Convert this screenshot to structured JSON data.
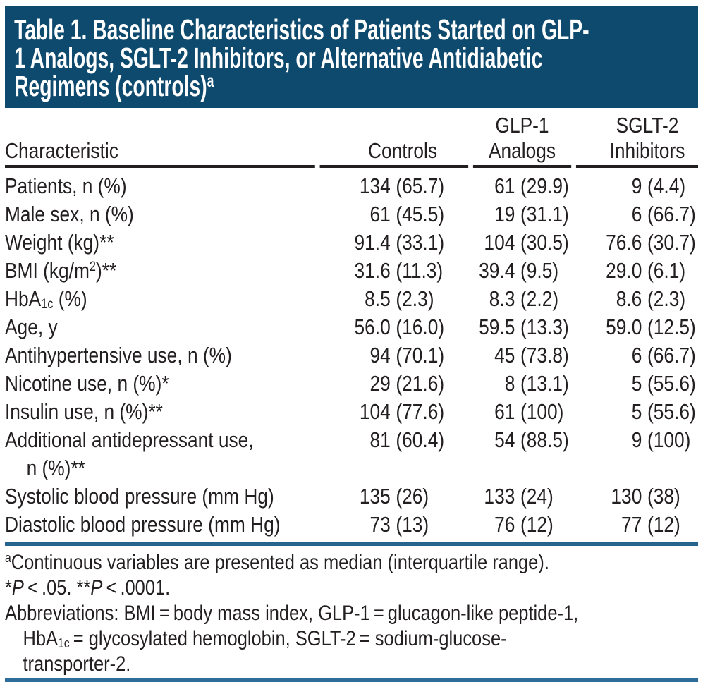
{
  "banner": {
    "title": "Table 1. Baseline Characteristics of Patients Started on GLP-\n1 Analogs, SGLT-2 Inhibitors, or Alternative Antidiabetic\nRegimens (controls)^{a}"
  },
  "table": {
    "col_headers": [
      "Characteristic",
      "Controls",
      "GLP-1\nAnalogs",
      "SGLT-2\nInhibitors"
    ],
    "rows": [
      {
        "label": "Patients, n (%)",
        "values": [
          "134 (65.7)",
          "61 (29.9)",
          "9 (4.4)"
        ]
      },
      {
        "label": "Male sex, n (%)",
        "values": [
          "61 (45.5)",
          "19 (31.1)",
          "6 (66.7)"
        ]
      },
      {
        "label": "Weight (kg)**",
        "values": [
          "91.4 (33.1)",
          "104 (30.5)",
          "76.6 (30.7)"
        ]
      },
      {
        "label": "BMI (kg/m^{2})**",
        "values": [
          "31.6 (11.3)",
          "39.4 (9.5)",
          "29.0 (6.1)"
        ]
      },
      {
        "label": "HbA_{1c} (%)",
        "values": [
          "8.5 (2.3)",
          "8.3 (2.2)",
          "8.6 (2.3)"
        ]
      },
      {
        "label": "Age, y",
        "values": [
          "56.0 (16.0)",
          "59.5 (13.3)",
          "59.0 (12.5)"
        ]
      },
      {
        "label": "Antihypertensive use, n (%)",
        "values": [
          "94 (70.1)",
          "45 (73.8)",
          "6 (66.7)"
        ]
      },
      {
        "label": "Nicotine use, n (%)*",
        "values": [
          "29 (21.6)",
          "8 (13.1)",
          "5 (55.6)"
        ]
      },
      {
        "label": "Insulin use, n (%)**",
        "values": [
          "104 (77.6)",
          "61 (100)",
          "5 (55.6)"
        ]
      },
      {
        "label": "Additional antidepressant use,\nn (%)**",
        "values": [
          "81 (60.4)",
          "54 (88.5)",
          "9 (100)"
        ]
      },
      {
        "label": "Systolic blood pressure (mm Hg)",
        "values": [
          "135 (26)",
          "133 (24)",
          "130 (38)"
        ]
      },
      {
        "label": "Diastolic blood pressure (mm Hg)",
        "values": [
          "73 (13)",
          "76 (12)",
          "77 (12)"
        ]
      }
    ]
  },
  "footnotes": [
    "^{a}Continuous variables are presented as median (interquartile range).",
    "*~P~ < .05. **~P~ < .0001.",
    "Abbreviations: BMI = body mass index, GLP-1 = glucagon-like peptide-1,\nHbA_{1c} = glycosylated hemoglobin, SGLT-2 = sodium-glucose-\ntransporter-2."
  ],
  "colors": {
    "banner": "#0e4a6e",
    "banner_text": "#ffffff",
    "header_rule": "#231f20",
    "mid_rule": "#26648e",
    "bottom_rule": "#2e6d99",
    "text": "#231f20"
  }
}
